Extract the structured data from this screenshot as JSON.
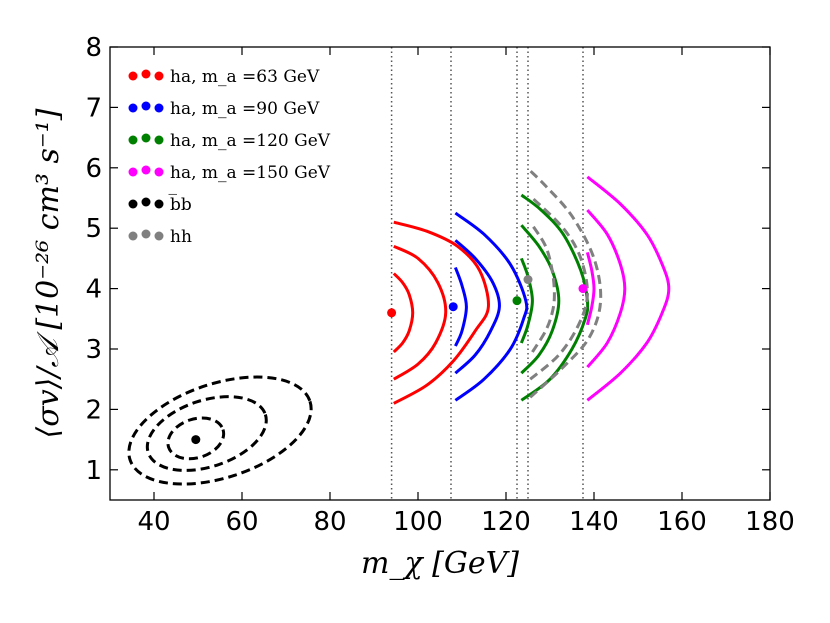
{
  "chart_data": {
    "type": "scatter",
    "xlabel": "m_χ [GeV]",
    "ylabel": "⟨σv⟩/𝒜 [10⁻²⁶ cm³ s⁻¹]",
    "xlim": [
      30,
      180
    ],
    "ylim": [
      0.5,
      8
    ],
    "x_ticks": [
      40,
      60,
      80,
      100,
      120,
      140,
      160,
      180
    ],
    "y_ticks": [
      1,
      2,
      3,
      4,
      5,
      6,
      7,
      8
    ],
    "grid": false,
    "legend_position": "top-left",
    "vertical_lines": [
      94,
      107.5,
      122.5,
      125,
      137.5
    ],
    "series": [
      {
        "name": "ha, m_a =63 GeV",
        "color": "#ff0000",
        "style": "solid",
        "best_fit": [
          94,
          3.6
        ],
        "contours": [
          [
            [
              94.5,
              2.95
            ],
            [
              96.5,
              3.1
            ],
            [
              98,
              3.3
            ],
            [
              98.8,
              3.6
            ],
            [
              98,
              3.9
            ],
            [
              96.5,
              4.1
            ],
            [
              94.5,
              4.25
            ]
          ],
          [
            [
              94.5,
              2.5
            ],
            [
              100,
              2.75
            ],
            [
              104,
              3.1
            ],
            [
              106.3,
              3.6
            ],
            [
              104.5,
              4.1
            ],
            [
              100,
              4.5
            ],
            [
              94.5,
              4.7
            ]
          ],
          [
            [
              94.5,
              2.1
            ],
            [
              102,
              2.4
            ],
            [
              108,
              2.8
            ],
            [
              113,
              3.3
            ],
            [
              116,
              3.7
            ],
            [
              114,
              4.3
            ],
            [
              109,
              4.7
            ],
            [
              102,
              4.95
            ],
            [
              94.5,
              5.1
            ]
          ]
        ]
      },
      {
        "name": "ha, m_a =90 GeV",
        "color": "#0000ff",
        "style": "solid",
        "best_fit": [
          108,
          3.7
        ],
        "contours": [
          [
            [
              108.5,
              3.05
            ],
            [
              110,
              3.3
            ],
            [
              111,
              3.7
            ],
            [
              110,
              4.05
            ],
            [
              108.5,
              4.35
            ]
          ],
          [
            [
              108.5,
              2.6
            ],
            [
              113,
              2.9
            ],
            [
              116.5,
              3.3
            ],
            [
              118.5,
              3.7
            ],
            [
              117,
              4.1
            ],
            [
              113,
              4.5
            ],
            [
              108.5,
              4.8
            ]
          ],
          [
            [
              108.5,
              2.15
            ],
            [
              115,
              2.5
            ],
            [
              121,
              3
            ],
            [
              124,
              3.5
            ],
            [
              124.5,
              3.8
            ],
            [
              121,
              4.4
            ],
            [
              115,
              4.9
            ],
            [
              108.5,
              5.25
            ]
          ]
        ]
      },
      {
        "name": "ha, m_a =120 GeV",
        "color": "#008000",
        "style": "solid",
        "best_fit": [
          122.5,
          3.8
        ],
        "contours": [
          [
            [
              123.5,
              3.1
            ],
            [
              125,
              3.4
            ],
            [
              126,
              3.8
            ],
            [
              125,
              4.2
            ],
            [
              123.5,
              4.5
            ]
          ],
          [
            [
              123.5,
              2.6
            ],
            [
              127.5,
              2.9
            ],
            [
              130.5,
              3.3
            ],
            [
              132,
              3.8
            ],
            [
              130.5,
              4.3
            ],
            [
              127.5,
              4.7
            ],
            [
              123.5,
              5.05
            ]
          ],
          [
            [
              123.5,
              2.15
            ],
            [
              130,
              2.5
            ],
            [
              135,
              3
            ],
            [
              138,
              3.5
            ],
            [
              138.5,
              3.8
            ],
            [
              137,
              4.3
            ],
            [
              133,
              4.9
            ],
            [
              128,
              5.3
            ],
            [
              123.5,
              5.55
            ]
          ]
        ]
      },
      {
        "name": "ha, m_a =150 GeV",
        "color": "#ff00ff",
        "style": "solid",
        "best_fit": [
          137.5,
          4
        ],
        "contours": [
          [
            [
              138.5,
              3.4
            ],
            [
              139.5,
              3.7
            ],
            [
              140,
              4
            ],
            [
              139.5,
              4.3
            ],
            [
              138.5,
              4.6
            ]
          ],
          [
            [
              138.5,
              2.7
            ],
            [
              143,
              3.1
            ],
            [
              146,
              3.6
            ],
            [
              147,
              4
            ],
            [
              146,
              4.4
            ],
            [
              143,
              4.9
            ],
            [
              138.5,
              5.3
            ]
          ],
          [
            [
              138.5,
              2.15
            ],
            [
              146,
              2.6
            ],
            [
              152,
              3.1
            ],
            [
              155.5,
              3.6
            ],
            [
              157,
              4
            ],
            [
              155.5,
              4.4
            ],
            [
              152,
              4.9
            ],
            [
              146,
              5.4
            ],
            [
              138.5,
              5.85
            ]
          ]
        ]
      },
      {
        "name": "b̅b",
        "color": "#000000",
        "style": "dashed",
        "best_fit": [
          49.5,
          1.5
        ],
        "contours": [
          {
            "cx": 49.5,
            "cy": 1.52,
            "rx": 6.5,
            "ry": 0.32,
            "angle": 18
          },
          {
            "cx": 52,
            "cy": 1.6,
            "rx": 14,
            "ry": 0.55,
            "angle": 18
          },
          {
            "cx": 55,
            "cy": 1.65,
            "rx": 21.5,
            "ry": 0.78,
            "angle": 18
          }
        ]
      },
      {
        "name": "hh",
        "color": "#808080",
        "style": "dashed",
        "best_fit": [
          125,
          4.15
        ],
        "contours": [
          [
            [
              126,
              2.95
            ],
            [
              129,
              3.3
            ],
            [
              130.5,
              3.6
            ],
            [
              131,
              3.9
            ],
            [
              130.5,
              4.3
            ],
            [
              129,
              4.7
            ],
            [
              126,
              5.05
            ]
          ],
          [
            [
              125.5,
              2.5
            ],
            [
              132,
              2.9
            ],
            [
              136.5,
              3.4
            ],
            [
              138.5,
              3.9
            ],
            [
              137,
              4.5
            ],
            [
              133,
              5
            ],
            [
              126,
              5.5
            ]
          ],
          [
            [
              125.5,
              2.2
            ],
            [
              133,
              2.7
            ],
            [
              139,
              3.2
            ],
            [
              141.5,
              3.8
            ],
            [
              140,
              4.5
            ],
            [
              135,
              5.2
            ],
            [
              129,
              5.7
            ],
            [
              125.5,
              5.95
            ]
          ]
        ]
      }
    ]
  }
}
